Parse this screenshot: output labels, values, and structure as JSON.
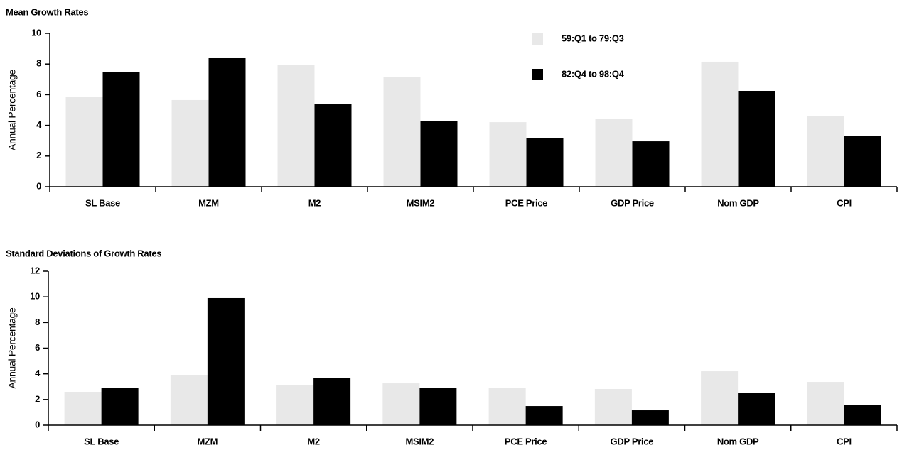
{
  "chart_data": [
    {
      "type": "bar",
      "title": "Mean Growth Rates",
      "y_label": "Annual Percentage",
      "categories": [
        "SL Base",
        "MZM",
        "M2",
        "MSIM2",
        "PCE Price",
        "GDP Price",
        "Nom GDP",
        "CPI"
      ],
      "series": [
        {
          "name": "59:Q1 to 79:Q3",
          "color": "#e8e8e8",
          "values": [
            5.88,
            5.65,
            7.96,
            7.13,
            4.21,
            4.44,
            8.15,
            4.63
          ]
        },
        {
          "name": "82:Q4 to 98:Q4",
          "color": "#000000",
          "values": [
            7.5,
            8.38,
            5.37,
            4.26,
            3.19,
            2.96,
            6.25,
            3.29
          ]
        }
      ],
      "ylim": [
        0,
        10
      ],
      "yticks": [
        0,
        2,
        4,
        6,
        8,
        10
      ],
      "grid": false,
      "legend": "top"
    },
    {
      "type": "bar",
      "title": "Standard Deviations of Growth Rates",
      "y_label": "Annual Percentage",
      "categories": [
        "SL Base",
        "MZM",
        "M2",
        "MSIM2",
        "PCE Price",
        "GDP Price",
        "Nom GDP",
        "CPI"
      ],
      "series": [
        {
          "color": "#e8e8e8",
          "values": [
            2.6,
            3.87,
            3.15,
            3.26,
            2.88,
            2.82,
            4.2,
            3.37
          ]
        },
        {
          "color": "#000000",
          "values": [
            2.93,
            9.9,
            3.7,
            2.93,
            1.49,
            1.16,
            2.49,
            1.55
          ]
        }
      ],
      "ylim": [
        0,
        12
      ],
      "yticks": [
        0,
        2,
        4,
        6,
        8,
        10,
        12
      ],
      "grid": false
    }
  ]
}
